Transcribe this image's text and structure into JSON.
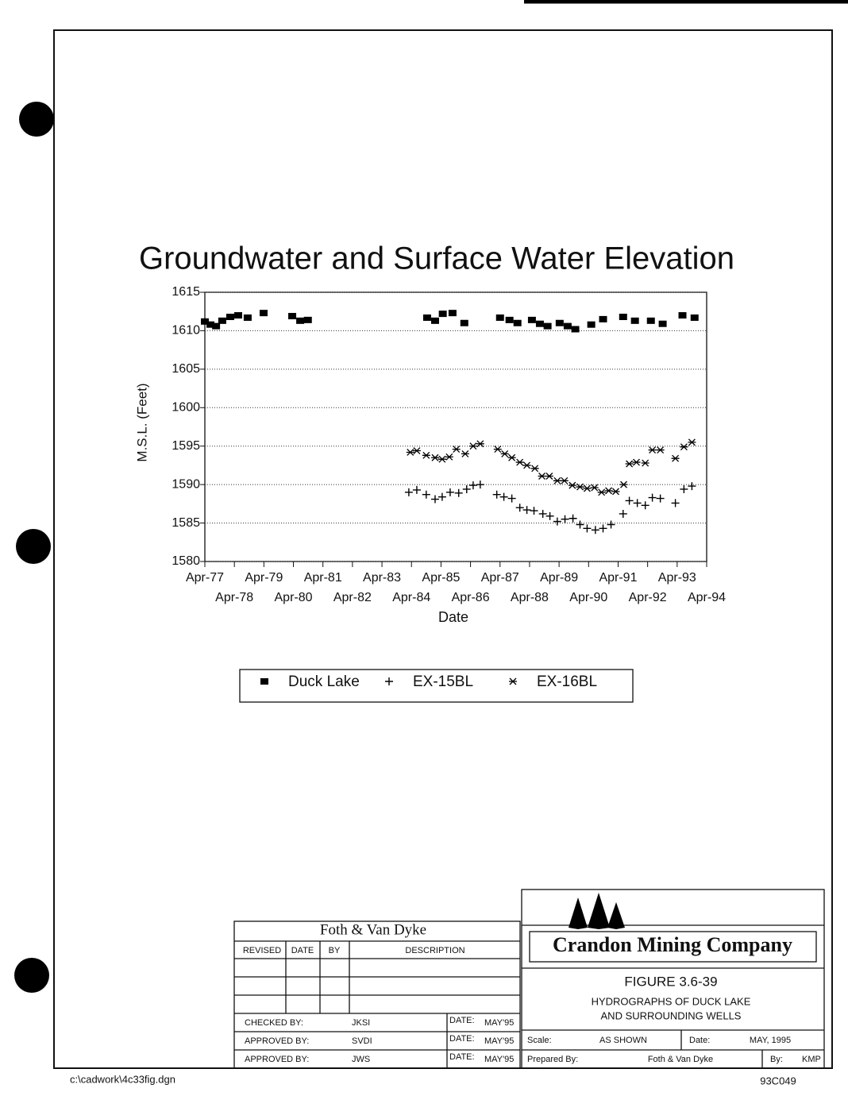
{
  "chart_data": {
    "type": "scatter",
    "title": "Groundwater and Surface Water Elevation",
    "xlabel": "Date",
    "ylabel": "M.S.L. (Feet)",
    "xlim": [
      1977.25,
      1994.25
    ],
    "xticks": [
      {
        "value": 1977.25,
        "label": "Apr-77"
      },
      {
        "value": 1978.25,
        "label": "Apr-78"
      },
      {
        "value": 1979.25,
        "label": "Apr-79"
      },
      {
        "value": 1980.25,
        "label": "Apr-80"
      },
      {
        "value": 1981.25,
        "label": "Apr-81"
      },
      {
        "value": 1982.25,
        "label": "Apr-82"
      },
      {
        "value": 1983.25,
        "label": "Apr-83"
      },
      {
        "value": 1984.25,
        "label": "Apr-84"
      },
      {
        "value": 1985.25,
        "label": "Apr-85"
      },
      {
        "value": 1986.25,
        "label": "Apr-86"
      },
      {
        "value": 1987.25,
        "label": "Apr-87"
      },
      {
        "value": 1988.25,
        "label": "Apr-88"
      },
      {
        "value": 1989.25,
        "label": "Apr-89"
      },
      {
        "value": 1990.25,
        "label": "Apr-90"
      },
      {
        "value": 1991.25,
        "label": "Apr-91"
      },
      {
        "value": 1992.25,
        "label": "Apr-92"
      },
      {
        "value": 1993.25,
        "label": "Apr-93"
      },
      {
        "value": 1994.25,
        "label": "Apr-94"
      }
    ],
    "ylim": [
      1580,
      1615
    ],
    "yticks": [
      1580,
      1585,
      1590,
      1595,
      1600,
      1605,
      1610,
      1615
    ],
    "grid": true,
    "series": [
      {
        "name": "Duck Lake",
        "color": "#000000",
        "marker": "square",
        "x": [
          1977.25,
          1977.44,
          1977.63,
          1977.84,
          1978.11,
          1978.38,
          1978.7,
          1979.24,
          1980.21,
          1980.48,
          1980.74,
          1984.78,
          1985.05,
          1985.31,
          1985.64,
          1986.04,
          1987.25,
          1987.57,
          1987.84,
          1988.33,
          1988.6,
          1988.86,
          1989.27,
          1989.54,
          1989.8,
          1990.34,
          1990.74,
          1991.42,
          1991.82,
          1992.36,
          1992.76,
          1993.43,
          1993.84
        ],
        "values": [
          1611.2,
          1610.8,
          1610.6,
          1611.3,
          1611.8,
          1612.0,
          1611.7,
          1612.3,
          1611.9,
          1611.3,
          1611.4,
          1611.7,
          1611.3,
          1612.2,
          1612.3,
          1611.0,
          1611.7,
          1611.4,
          1611.0,
          1611.4,
          1610.9,
          1610.6,
          1611.0,
          1610.6,
          1610.2,
          1610.8,
          1611.5,
          1611.8,
          1611.3,
          1611.3,
          1610.9,
          1612.0,
          1611.7
        ]
      },
      {
        "name": "EX-15BL",
        "color": "#000000",
        "marker": "plus",
        "x": [
          1984.16,
          1984.43,
          1984.75,
          1985.05,
          1985.29,
          1985.56,
          1985.85,
          1986.12,
          1986.34,
          1986.58,
          1987.14,
          1987.38,
          1987.65,
          1987.92,
          1988.16,
          1988.4,
          1988.7,
          1988.94,
          1989.19,
          1989.45,
          1989.72,
          1989.96,
          1990.2,
          1990.48,
          1990.74,
          1991.01,
          1991.42,
          1991.63,
          1991.9,
          1992.17,
          1992.41,
          1992.68,
          1993.19,
          1993.48,
          1993.75
        ],
        "values": [
          1589.0,
          1589.3,
          1588.7,
          1588.1,
          1588.4,
          1589.0,
          1588.9,
          1589.4,
          1589.9,
          1590.0,
          1588.7,
          1588.4,
          1588.2,
          1587.0,
          1586.7,
          1586.6,
          1586.2,
          1585.9,
          1585.2,
          1585.5,
          1585.6,
          1584.8,
          1584.3,
          1584.1,
          1584.3,
          1584.8,
          1586.2,
          1587.9,
          1587.6,
          1587.3,
          1588.3,
          1588.2,
          1587.6,
          1589.4,
          1589.8
        ]
      },
      {
        "name": "EX-16BL",
        "color": "#000000",
        "marker": "asterisk",
        "x": [
          1984.21,
          1984.43,
          1984.75,
          1985.05,
          1985.29,
          1985.53,
          1985.77,
          1986.07,
          1986.34,
          1986.58,
          1987.17,
          1987.41,
          1987.65,
          1987.92,
          1988.16,
          1988.43,
          1988.67,
          1988.92,
          1989.19,
          1989.43,
          1989.7,
          1989.96,
          1990.2,
          1990.45,
          1990.69,
          1990.93,
          1991.17,
          1991.44,
          1991.63,
          1991.87,
          1992.17,
          1992.41,
          1992.68,
          1993.19,
          1993.48,
          1993.75
        ],
        "values": [
          1594.2,
          1594.4,
          1593.8,
          1593.5,
          1593.3,
          1593.6,
          1594.6,
          1594.0,
          1595.0,
          1595.3,
          1594.6,
          1594.0,
          1593.5,
          1592.9,
          1592.5,
          1592.1,
          1591.1,
          1591.1,
          1590.5,
          1590.5,
          1589.9,
          1589.7,
          1589.5,
          1589.6,
          1589.0,
          1589.2,
          1589.1,
          1590.0,
          1592.7,
          1592.9,
          1592.8,
          1594.5,
          1594.5,
          1593.4,
          1594.9,
          1595.5
        ]
      }
    ]
  },
  "revision_block": {
    "firm": "Foth & Van Dyke",
    "headers": [
      "REVISED",
      "DATE",
      "BY",
      "DESCRIPTION"
    ],
    "signoffs": [
      {
        "label": "CHECKED BY:",
        "name": "JKSI",
        "date_label": "DATE:",
        "date": "MAY'95"
      },
      {
        "label": "APPROVED BY:",
        "name": "SVDI",
        "date_label": "DATE:",
        "date": "MAY'95"
      },
      {
        "label": "APPROVED BY:",
        "name": "JWS",
        "date_label": "DATE:",
        "date": "MAY'95"
      }
    ]
  },
  "company_block": {
    "company": "Crandon Mining Company",
    "figure": "FIGURE 3.6-39",
    "description": [
      "HYDROGRAPHS OF DUCK LAKE",
      "AND SURROUNDING WELLS"
    ],
    "scale_label": "Scale:",
    "scale": "AS SHOWN",
    "date_label": "Date:",
    "date": "MAY, 1995",
    "prepared_label": "Prepared By:",
    "prepared": "Foth & Van Dyke",
    "by_label": "By:",
    "by": "KMP"
  },
  "footer": {
    "file": "c:\\cadwork\\4c33fig.dgn",
    "number": "93C049"
  }
}
